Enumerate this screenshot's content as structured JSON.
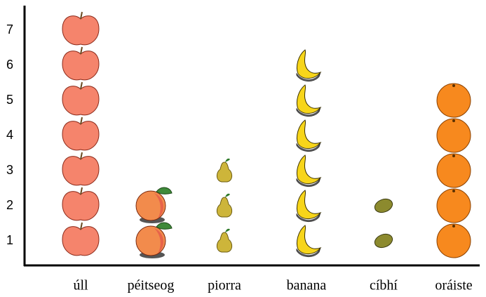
{
  "chart_data": {
    "type": "pictograph",
    "categories": [
      "úll",
      "péitseog",
      "piorra",
      "banana",
      "cíbhí",
      "oráiste"
    ],
    "values": [
      7,
      2,
      3,
      6,
      2,
      5
    ],
    "colors": [
      "#f5846c",
      "#f28b4c",
      "#cdb53a",
      "#f7d51a",
      "#8c8a2e",
      "#f7891e"
    ],
    "ylim": [
      0.3,
      7.6
    ],
    "yticks": [
      1,
      2,
      3,
      4,
      5,
      6,
      7
    ]
  }
}
